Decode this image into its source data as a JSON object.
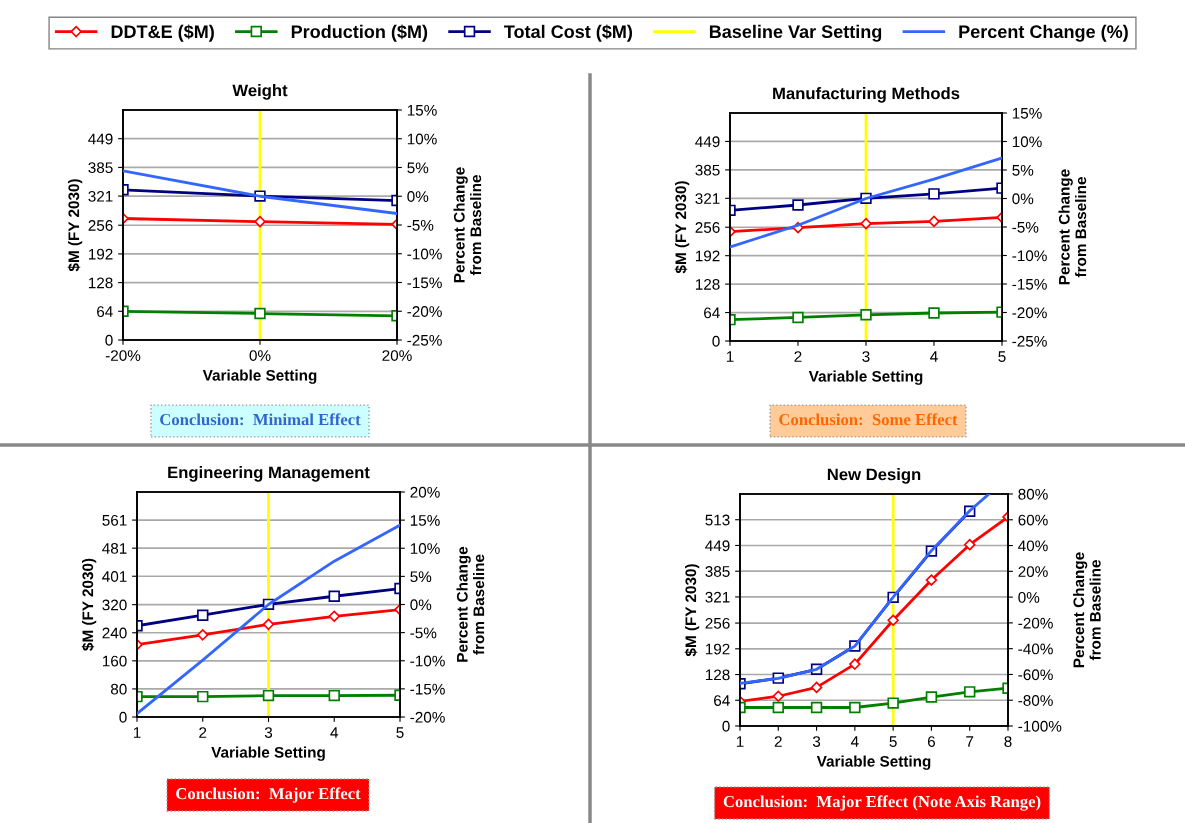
{
  "chart_data": [
    {
      "type": "line",
      "title": "Weight",
      "xlabel": "Variable Setting",
      "ylabel": "$M (FY 2030)",
      "y2label": "Percent Change\nfrom Baseline",
      "x": [
        -20,
        0,
        20
      ],
      "xlim": [
        -20,
        20
      ],
      "xticks": [
        {
          "value": -20,
          "label": "-20%"
        },
        {
          "value": 0,
          "label": "0%"
        },
        {
          "value": 20,
          "label": "20%"
        }
      ],
      "ylim": [
        0,
        513
      ],
      "yticks": [
        0,
        64,
        128,
        192,
        256,
        321,
        385,
        449
      ],
      "y2lim": [
        -25,
        15
      ],
      "y2ticks": [
        {
          "value": -25,
          "label": "-25%"
        },
        {
          "value": -20,
          "label": "-20%"
        },
        {
          "value": -15,
          "label": "-15%"
        },
        {
          "value": -10,
          "label": "-10%"
        },
        {
          "value": -5,
          "label": "-5%"
        },
        {
          "value": 0,
          "label": "0%"
        },
        {
          "value": 5,
          "label": "5%"
        },
        {
          "value": 10,
          "label": "10%"
        },
        {
          "value": 15,
          "label": "15%"
        }
      ],
      "grid": "y",
      "legend": "top",
      "line_style": "solid",
      "series": [
        {
          "name": "DDT&E ($M)",
          "color": "#ff0000",
          "marker": "diamond",
          "values": [
            271,
            264,
            258
          ]
        },
        {
          "name": "Production ($M)",
          "color": "#008000",
          "marker": "square",
          "values": [
            64,
            59,
            54
          ]
        },
        {
          "name": "Total Cost ($M)",
          "color": "#000080",
          "marker": "square",
          "values": [
            335,
            321,
            311
          ]
        },
        {
          "name": "Percent Change (%)",
          "color": "#3366ff",
          "marker": "none",
          "axis": "y2",
          "values": [
            4.4,
            0,
            -3.0
          ]
        }
      ],
      "ref_lines": [
        {
          "axis": "x",
          "value": 0,
          "label": "Baseline Var Setting",
          "color": "#ffff00"
        }
      ],
      "annotations": [
        "Conclusion:  Minimal Effect"
      ]
    },
    {
      "type": "line",
      "title": "Manufacturing Methods",
      "xlabel": "Variable Setting",
      "ylabel": "$M (FY 2030)",
      "y2label": "Percent Change\nfrom Baseline",
      "x": [
        1,
        2,
        3,
        4,
        5
      ],
      "xlim": [
        1,
        5
      ],
      "xticks": [
        1,
        2,
        3,
        4,
        5
      ],
      "ylim": [
        0,
        513
      ],
      "yticks": [
        0,
        64,
        128,
        192,
        256,
        321,
        385,
        449
      ],
      "y2lim": [
        -25,
        15
      ],
      "y2ticks": [
        {
          "value": -25,
          "label": "-25%"
        },
        {
          "value": -20,
          "label": "-20%"
        },
        {
          "value": -15,
          "label": "-15%"
        },
        {
          "value": -10,
          "label": "-10%"
        },
        {
          "value": -5,
          "label": "-5%"
        },
        {
          "value": 0,
          "label": "0%"
        },
        {
          "value": 5,
          "label": "5%"
        },
        {
          "value": 10,
          "label": "10%"
        },
        {
          "value": 15,
          "label": "15%"
        }
      ],
      "grid": "y",
      "line_style": "solid",
      "series": [
        {
          "color": "#ff0000",
          "marker": "diamond",
          "values": [
            246,
            255,
            264,
            269,
            278
          ]
        },
        {
          "color": "#008000",
          "marker": "square",
          "values": [
            48,
            53,
            59,
            63,
            65
          ]
        },
        {
          "color": "#000080",
          "marker": "square",
          "values": [
            294,
            306,
            321,
            331,
            344
          ]
        },
        {
          "color": "#3366ff",
          "marker": "none",
          "axis": "y2",
          "values": [
            -8.5,
            -4.7,
            0,
            3.4,
            7.1
          ]
        }
      ],
      "ref_lines": [
        {
          "axis": "x",
          "value": 3,
          "color": "#ffff00"
        }
      ],
      "annotations": [
        "Conclusion:  Some Effect"
      ]
    },
    {
      "type": "line",
      "title": "Engineering Management",
      "xlabel": "Variable Setting",
      "ylabel": "$M (FY 2030)",
      "y2label": "Percent Change\nfrom Baseline",
      "x": [
        1,
        2,
        3,
        4,
        5
      ],
      "xlim": [
        1,
        5
      ],
      "xticks": [
        1,
        2,
        3,
        4,
        5
      ],
      "ylim": [
        0,
        641
      ],
      "yticks": [
        0,
        80,
        160,
        240,
        320,
        401,
        481,
        561
      ],
      "y2lim": [
        -20,
        20
      ],
      "y2ticks": [
        {
          "value": -20,
          "label": "-20%"
        },
        {
          "value": -15,
          "label": "-15%"
        },
        {
          "value": -10,
          "label": "-10%"
        },
        {
          "value": -5,
          "label": "-5%"
        },
        {
          "value": 0,
          "label": "0%"
        },
        {
          "value": 5,
          "label": "5%"
        },
        {
          "value": 10,
          "label": "10%"
        },
        {
          "value": 15,
          "label": "15%"
        },
        {
          "value": 20,
          "label": "20%"
        }
      ],
      "grid": "y",
      "line_style": "solid",
      "series": [
        {
          "color": "#ff0000",
          "marker": "diamond",
          "values": [
            206,
            234,
            264,
            287,
            306
          ]
        },
        {
          "color": "#008000",
          "marker": "square",
          "values": [
            58,
            58,
            61,
            61,
            62
          ]
        },
        {
          "color": "#000080",
          "marker": "square",
          "values": [
            260,
            290,
            321,
            344,
            366
          ]
        },
        {
          "color": "#3366ff",
          "marker": "none",
          "axis": "y2",
          "values": [
            -19.4,
            -9.9,
            0,
            7.7,
            14.1
          ]
        }
      ],
      "ref_lines": [
        {
          "axis": "x",
          "value": 3,
          "color": "#ffff00"
        }
      ],
      "annotations": [
        "Conclusion:  Major Effect"
      ]
    },
    {
      "type": "line",
      "title": "New Design",
      "xlabel": "Variable Setting",
      "ylabel": "$M (FY 2030)",
      "y2label": "Percent Change\nfrom Baseline",
      "x": [
        1,
        2,
        3,
        4,
        5,
        6,
        7,
        8
      ],
      "xlim": [
        1,
        8
      ],
      "xticks": [
        1,
        2,
        3,
        4,
        5,
        6,
        7,
        8
      ],
      "ylim": [
        0,
        577
      ],
      "yticks": [
        0,
        64,
        128,
        192,
        256,
        321,
        385,
        449,
        513
      ],
      "y2lim": [
        -100,
        80
      ],
      "y2ticks": [
        {
          "value": -100,
          "label": "-100%"
        },
        {
          "value": -80,
          "label": "-80%"
        },
        {
          "value": -60,
          "label": "-60%"
        },
        {
          "value": -40,
          "label": "-40%"
        },
        {
          "value": -20,
          "label": "-20%"
        },
        {
          "value": 0,
          "label": "0%"
        },
        {
          "value": 20,
          "label": "20%"
        },
        {
          "value": 40,
          "label": "40%"
        },
        {
          "value": 60,
          "label": "60%"
        },
        {
          "value": 80,
          "label": "80%"
        }
      ],
      "grid": "y",
      "line_style": "solid",
      "series": [
        {
          "color": "#ff0000",
          "marker": "diamond",
          "values": [
            61,
            74,
            96,
            154,
            263,
            363,
            451,
            520
          ]
        },
        {
          "color": "#008000",
          "marker": "square",
          "values": [
            46,
            46,
            46,
            46,
            57,
            72,
            85,
            94
          ]
        },
        {
          "color": "#000080",
          "marker": "square",
          "values": [
            105,
            119,
            141,
            199,
            320,
            435,
            534,
            null
          ]
        },
        {
          "color": "#3366ff",
          "marker": "none",
          "axis": "y2",
          "x": [
            1,
            2,
            3,
            4,
            5,
            6,
            7,
            7.5
          ],
          "values": [
            -67,
            -63,
            -56,
            -38,
            0,
            36,
            67,
            80
          ]
        }
      ],
      "ref_lines": [
        {
          "axis": "x",
          "value": 5,
          "color": "#ffff00"
        }
      ],
      "annotations": [
        "Conclusion:  Major Effect (Note Axis Range)"
      ]
    }
  ]
}
